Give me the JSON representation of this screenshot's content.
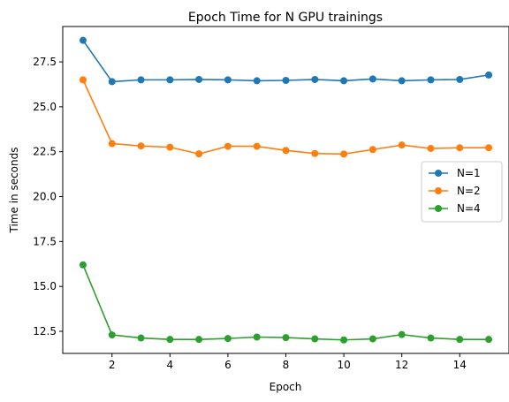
{
  "chart_data": {
    "type": "line",
    "title": "Epoch Time for N GPU trainings",
    "xlabel": "Epoch",
    "ylabel": "Time in seconds",
    "xlim": [
      0.3,
      15.7
    ],
    "ylim": [
      11.27,
      29.47
    ],
    "xticks": [
      2,
      4,
      6,
      8,
      10,
      12,
      14
    ],
    "yticks": [
      12.5,
      15.0,
      17.5,
      20.0,
      22.5,
      25.0,
      27.5
    ],
    "ytick_labels": [
      "12.5",
      "15.0",
      "17.5",
      "20.0",
      "22.5",
      "25.0",
      "27.5"
    ],
    "legend_position": "center-right",
    "grid": false,
    "x": [
      1,
      2,
      3,
      4,
      5,
      6,
      7,
      8,
      9,
      10,
      11,
      12,
      13,
      14,
      15
    ],
    "series": [
      {
        "name": "N=1",
        "color": "#1f77b4",
        "values": [
          28.7,
          26.4,
          26.5,
          26.5,
          26.52,
          26.5,
          26.45,
          26.47,
          26.52,
          26.45,
          26.55,
          26.45,
          26.5,
          26.52,
          26.77
        ]
      },
      {
        "name": "N=2",
        "color": "#ff7f0e",
        "values": [
          26.5,
          22.95,
          22.82,
          22.75,
          22.38,
          22.8,
          22.8,
          22.57,
          22.4,
          22.37,
          22.62,
          22.87,
          22.68,
          22.72,
          22.72
        ]
      },
      {
        "name": "N=4",
        "color": "#2ca02c",
        "values": [
          16.2,
          12.3,
          12.13,
          12.05,
          12.05,
          12.1,
          12.18,
          12.15,
          12.08,
          12.02,
          12.08,
          12.32,
          12.13,
          12.05,
          12.05
        ]
      }
    ]
  }
}
